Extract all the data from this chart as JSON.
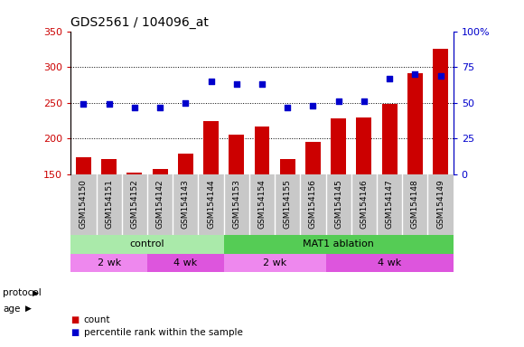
{
  "title": "GDS2561 / 104096_at",
  "samples": [
    "GSM154150",
    "GSM154151",
    "GSM154152",
    "GSM154142",
    "GSM154143",
    "GSM154144",
    "GSM154153",
    "GSM154154",
    "GSM154155",
    "GSM154156",
    "GSM154145",
    "GSM154146",
    "GSM154147",
    "GSM154148",
    "GSM154149"
  ],
  "count_values": [
    174,
    172,
    153,
    158,
    179,
    224,
    205,
    217,
    171,
    196,
    228,
    229,
    248,
    291,
    325
  ],
  "percentile_values": [
    49,
    49,
    47,
    47,
    50,
    65,
    63,
    63,
    47,
    48,
    51,
    51,
    67,
    70,
    69
  ],
  "ylim_left": [
    150,
    350
  ],
  "ylim_right": [
    0,
    100
  ],
  "yticks_left": [
    150,
    200,
    250,
    300,
    350
  ],
  "yticks_right": [
    0,
    25,
    50,
    75,
    100
  ],
  "bar_color": "#cc0000",
  "dot_color": "#0000cc",
  "protocol_control_label": "control",
  "protocol_mat1_label": "MAT1 ablation",
  "age_2wk_label": "2 wk",
  "age_4wk_label": "4 wk",
  "protocol_control_color": "#aaeaaa",
  "protocol_mat1_color": "#55cc55",
  "age_2wk_color": "#ee88ee",
  "age_4wk_color": "#dd55dd",
  "xlabel_row_bg": "#c8c8c8",
  "legend_count": "count",
  "legend_pct": "percentile rank within the sample",
  "control_samples": [
    0,
    1,
    2,
    3,
    4,
    5
  ],
  "mat1_samples": [
    6,
    7,
    8,
    9,
    10,
    11,
    12,
    13,
    14
  ],
  "age_2wk_control": [
    0,
    1,
    2
  ],
  "age_4wk_control": [
    3,
    4,
    5
  ],
  "age_2wk_mat1": [
    6,
    7,
    8,
    9
  ],
  "age_4wk_mat1": [
    10,
    11,
    12,
    13,
    14
  ]
}
